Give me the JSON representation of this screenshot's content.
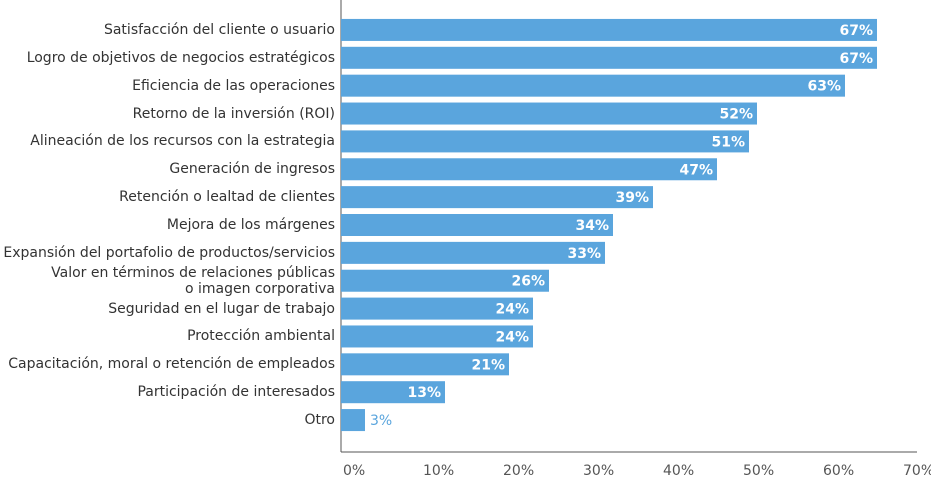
{
  "chart_data": {
    "type": "bar",
    "orientation": "horizontal",
    "color": "#5aa5dd",
    "categories": [
      "Satisfacción del cliente o usuario",
      "Logro de objetivos de negocios estratégicos",
      "Eficiencia de las operaciones",
      "Retorno de la inversión (ROI)",
      "Alineación de los recursos con la estrategia",
      "Generación de ingresos",
      "Retención o lealtad de clientes",
      "Mejora de los márgenes",
      "Expansión del portafolio de productos/servicios",
      "Valor en términos de relaciones públicas\no imagen corporativa",
      "Seguridad en el lugar de trabajo",
      "Protección ambiental",
      "Capacitación, moral o retención de empleados",
      "Participación de interesados",
      "Otro"
    ],
    "values": [
      67,
      67,
      63,
      52,
      51,
      47,
      39,
      34,
      33,
      26,
      24,
      24,
      21,
      13,
      3
    ],
    "value_labels": [
      "67%",
      "67%",
      "63%",
      "52%",
      "51%",
      "47%",
      "39%",
      "34%",
      "33%",
      "26%",
      "24%",
      "24%",
      "21%",
      "13%",
      "3%"
    ],
    "xlim": [
      0,
      70
    ],
    "xticks": [
      {
        "value": 0,
        "label": "0%"
      },
      {
        "value": 10,
        "label": "10%"
      },
      {
        "value": 20,
        "label": "20%"
      },
      {
        "value": 30,
        "label": "30%"
      },
      {
        "value": 40,
        "label": "40%"
      },
      {
        "value": 50,
        "label": "50%"
      },
      {
        "value": 60,
        "label": "60%"
      },
      {
        "value": 70,
        "label": "70%"
      }
    ],
    "grid": false
  }
}
